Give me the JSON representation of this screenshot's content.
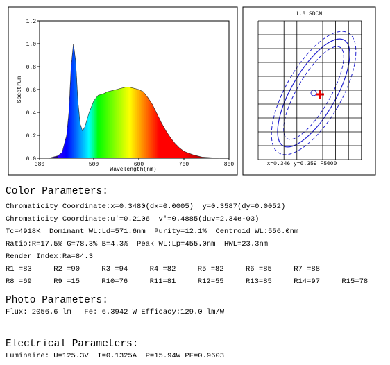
{
  "chart_data": [
    {
      "type": "line",
      "xlabel": "Wavelength(nm)",
      "ylabel": "Spectrum",
      "x": [
        380,
        390,
        400,
        410,
        420,
        430,
        440,
        445,
        450,
        455,
        460,
        465,
        470,
        475,
        480,
        490,
        500,
        510,
        520,
        530,
        540,
        550,
        560,
        570,
        580,
        590,
        600,
        610,
        620,
        630,
        640,
        650,
        660,
        670,
        680,
        690,
        700,
        720,
        740,
        760,
        780
      ],
      "values": [
        0,
        0,
        0,
        0.01,
        0.02,
        0.05,
        0.2,
        0.4,
        0.8,
        1.0,
        0.85,
        0.5,
        0.3,
        0.24,
        0.27,
        0.4,
        0.5,
        0.55,
        0.56,
        0.58,
        0.59,
        0.6,
        0.61,
        0.62,
        0.62,
        0.61,
        0.6,
        0.58,
        0.53,
        0.47,
        0.39,
        0.31,
        0.24,
        0.18,
        0.13,
        0.09,
        0.06,
        0.03,
        0.01,
        0.005,
        0
      ],
      "xlim": [
        380,
        800
      ],
      "xticks": [
        380,
        500,
        600,
        700,
        800
      ],
      "ylim": [
        0,
        1.2
      ],
      "yticks": [
        {
          "value": 0,
          "label": "0.0"
        },
        0.2,
        0.4,
        0.6,
        0.8,
        {
          "value": 1,
          "label": "1.0"
        },
        1.2
      ]
    },
    {
      "type": "sdcm",
      "title": "1.6 SDCM",
      "caption": "x=0.346 y=0.359 F5000"
    }
  ],
  "report": {
    "color_heading": "Color Parameters:",
    "color_lines": [
      "Chromaticity Coordinate:x=0.3480(dx=0.0005)  y=0.3587(dy=0.0052)",
      "Chromaticity Coordinate:u'=0.2106  v'=0.4885(duv=2.34e-03)",
      "Tc=4918K  Dominant WL:Ld=571.6nm  Purity=12.1%  Centroid WL:556.0nm",
      "Ratio:R=17.5% G=78.3% B=4.3%  Peak WL:Lp=455.0nm  HWL=23.3nm",
      "Render Index:Ra=84.3"
    ],
    "r_row1": [
      "R1 =83",
      "R2 =90",
      "R3 =94",
      "R4 =82",
      "R5 =82",
      "R6 =85",
      "R7 =88"
    ],
    "r_row2": [
      "R8 =69",
      "R9 =15",
      "R10=76",
      "R11=81",
      "R12=55",
      "R13=85",
      "R14=97",
      "R15=78"
    ],
    "photo_heading": "Photo Parameters:",
    "photo_line": "Flux: 2056.6 lm   Fe: 6.3942 W Efficacy:129.0 lm/W",
    "elec_heading": "Electrical Parameters:",
    "elec_line": "Luminaire: U=125.3V  I=0.1325A  P=15.94W PF=0.9603"
  }
}
